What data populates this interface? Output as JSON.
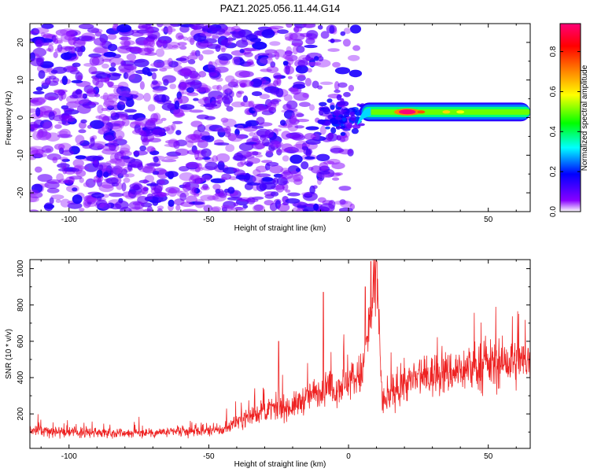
{
  "title": "PAZ1.2025.056.11.44.G14",
  "charts": [
    {
      "type": "heatmap",
      "xlabel": "Height of straight line (km)",
      "ylabel": "Frequency (Hz)",
      "xlim": [
        -114,
        65
      ],
      "ylim": [
        -25,
        25
      ],
      "xticks": [
        -100,
        -50,
        0,
        50
      ],
      "yticks": [
        -20,
        -10,
        0,
        10,
        20
      ],
      "grid": false,
      "colorbar": {
        "label": "Normalized spectral amplitude",
        "range": [
          0,
          0.94
        ],
        "ticks": [
          0.0,
          0.2,
          0.4,
          0.6,
          0.8
        ],
        "tick_labels": [
          "0.0",
          "0.2",
          "0.4",
          "0.6",
          "0.8"
        ],
        "colormap": [
          "#ffffff",
          "#8800ff",
          "#0000ff",
          "#00ffff",
          "#00ff00",
          "#ffff00",
          "#ff7700",
          "#ff0000",
          "#ff0077"
        ]
      },
      "features": {
        "noise_region_x": [
          -114,
          3
        ],
        "noise_amplitude": [
          0.05,
          0.3
        ],
        "turbulent_region_x": [
          -10,
          5
        ],
        "tone_region_x": [
          4,
          65
        ],
        "tone_frequency_hz": 1.5,
        "tone_bandwidth_hz": 2.5,
        "tone_peak_x": [
          18,
          24
        ],
        "tone_peak_amplitude": 0.94,
        "tone_typical_amplitude": 0.5
      }
    },
    {
      "type": "line",
      "xlabel": "Height of straight line (km)",
      "ylabel": "SNR (10 * v/v)",
      "xlim": [
        -114,
        65
      ],
      "ylim": [
        10,
        1050
      ],
      "xticks": [
        -100,
        -50,
        0,
        50
      ],
      "yticks": [
        200,
        400,
        600,
        800,
        1000
      ],
      "grid": false,
      "color": "#ee2222",
      "series_trend": {
        "x": [
          -114,
          -100,
          -80,
          -60,
          -45,
          -40,
          -30,
          -20,
          -15,
          -10,
          -5,
          0,
          5,
          8,
          10,
          11,
          12,
          15,
          20,
          30,
          40,
          50,
          65
        ],
        "y": [
          110,
          100,
          95,
          100,
          110,
          160,
          220,
          240,
          290,
          330,
          340,
          380,
          420,
          750,
          960,
          700,
          260,
          300,
          370,
          410,
          440,
          470,
          490
        ]
      },
      "spikes": [
        {
          "x": -9,
          "y": 870
        },
        {
          "x": -25,
          "y": 600
        },
        {
          "x": 8,
          "y": 1040
        },
        {
          "x": 10,
          "y": 1040
        },
        {
          "x": 6,
          "y": 900
        }
      ]
    }
  ]
}
